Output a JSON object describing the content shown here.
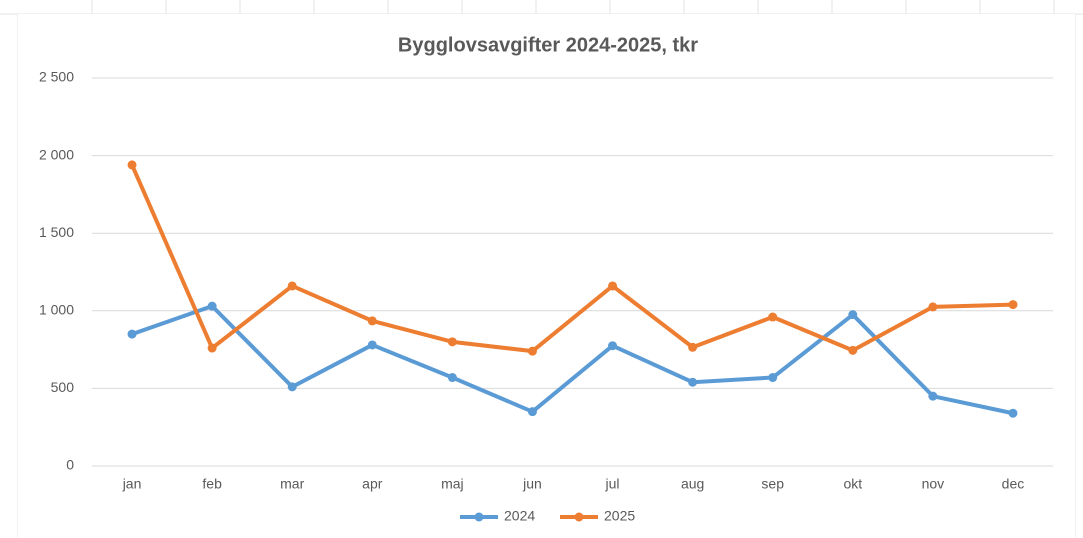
{
  "chart_data": {
    "type": "line",
    "title": "Bygglovsavgifter 2024-2025, tkr",
    "categories": [
      "jan",
      "feb",
      "mar",
      "apr",
      "maj",
      "jun",
      "jul",
      "aug",
      "sep",
      "okt",
      "nov",
      "dec"
    ],
    "series": [
      {
        "name": "2024",
        "color": "#5b9bd5",
        "values": [
          850,
          1030,
          510,
          780,
          570,
          350,
          775,
          540,
          570,
          975,
          450,
          340
        ]
      },
      {
        "name": "2025",
        "color": "#ed7d31",
        "values": [
          1940,
          760,
          1160,
          935,
          800,
          740,
          1160,
          765,
          960,
          745,
          1025,
          1040
        ]
      }
    ],
    "ylim": [
      0,
      2500
    ],
    "yticks": [
      0,
      {
        "value": 500,
        "label": "500"
      },
      {
        "value": 1000,
        "label": "1 000"
      },
      {
        "value": 1500,
        "label": "1 500"
      },
      {
        "value": 2000,
        "label": "2 000"
      },
      {
        "value": 2500,
        "label": "2 500"
      }
    ],
    "grid": true,
    "legend": "bottom"
  }
}
